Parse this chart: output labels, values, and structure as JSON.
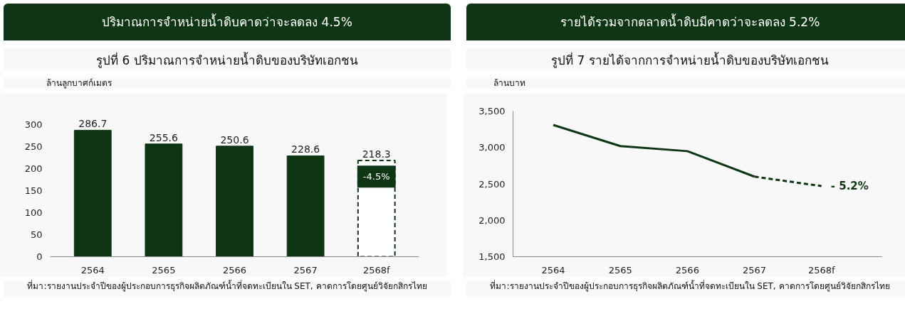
{
  "chart_data": [
    {
      "type": "bar",
      "title": "ปริมาณการจำหน่ายน้ำดิบคาดว่าจะลดลง 4.5%",
      "subtitle": "รูปที่ 6 ปริมาณการจำหน่ายน้ำดิบของบริษัทเอกชน",
      "ylabel": "ล้านลูกบาศก์เมตร",
      "categories": [
        "2564",
        "2565",
        "2566",
        "2567",
        "2568f"
      ],
      "series": [
        {
          "color": "#0e3514",
          "values": [
            286.7,
            255.6,
            250.6,
            228.6,
            null
          ]
        },
        {
          "color": "#0e3514",
          "values": [
            null,
            null,
            null,
            null,
            218.3
          ],
          "line_style": "dashed"
        }
      ],
      "ylim": [
        0,
        330
      ],
      "yticks": [
        0,
        50,
        100,
        150,
        200,
        250,
        300
      ],
      "data_labels": true,
      "grid": false,
      "annotations": [
        "-4.5%",
        "ที่มา:รายงานประจำปีของผู้ประกอบการธุรกิจผลิตภัณฑ์น้ำที่จดทะเบียนใน SET, คาดการโดยศูนย์วิจัยกสิกรไทย"
      ]
    },
    {
      "type": "line",
      "title": "รายได้รวมจากตลาดน้ำดิบมีคาดว่าจะลดลง 5.2%",
      "subtitle": "รูปที่ 7 รายได้จากการจำหน่ายน้ำดิบของบริษัทเอกชน",
      "ylabel": "ล้านบาท",
      "categories": [
        "2564",
        "2565",
        "2566",
        "2567",
        "2568f"
      ],
      "series": [
        {
          "color": "#0e3514",
          "values": [
            3310,
            3020,
            2950,
            2600,
            null
          ],
          "line_style": "solid"
        },
        {
          "color": "#0e3514",
          "values": [
            null,
            null,
            null,
            2600,
            2470
          ],
          "line_style": "dashed"
        }
      ],
      "ylim": [
        1500,
        3500
      ],
      "yticks": [
        {
          "value": 1500,
          "label": "1,500"
        },
        {
          "value": 2000,
          "label": "2,000"
        },
        {
          "value": 2500,
          "label": "2,500"
        },
        {
          "value": 3000,
          "label": "3,000"
        },
        {
          "value": 3500,
          "label": "3,500"
        }
      ],
      "grid": false,
      "annotations": [
        "- 5.2%",
        "ที่มา:รายงานประจำปีของผู้ประกอบการธุรกิจผลิตภัณฑ์น้ำที่จดทะเบียนใน SET, คาดการโดยศูนย์วิจัยกสิกรไทย"
      ]
    }
  ]
}
